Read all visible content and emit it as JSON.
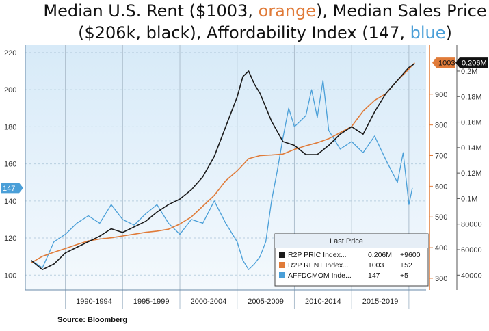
{
  "title": {
    "prefix1": "Median U.S. Rent ($1003, ",
    "orange_word": "orange",
    "suffix1": "), Median Sales Price",
    "prefix2": "($206k, black), Affordability Index (147, ",
    "blue_word": "blue",
    "suffix2": ")"
  },
  "source": "Source: Bloomberg",
  "colors": {
    "black_series": "#1a1a1a",
    "orange_series": "#e07b39",
    "blue_series": "#4a9fd8",
    "title_orange": "#e07b39",
    "title_blue": "#4a9fd8",
    "plot_bg_top": "#d7eaf8",
    "plot_bg_bottom": "#f4f9fd"
  },
  "chart_data": {
    "type": "line",
    "x_axis": {
      "range": [
        1986.5,
        2021.5
      ],
      "period_labels": [
        "1990-1994",
        "1995-1999",
        "2000-2004",
        "2005-2009",
        "2010-2014",
        "2015-2019"
      ],
      "period_bounds": [
        1990,
        1995,
        2000,
        2005,
        2010,
        2015,
        2020
      ]
    },
    "left_axis": {
      "range": [
        92,
        224
      ],
      "ticks": [
        100,
        120,
        140,
        160,
        180,
        200,
        220
      ],
      "marker": "147"
    },
    "right_rent_axis": {
      "range": [
        262,
        1060
      ],
      "ticks": [
        300,
        400,
        500,
        600,
        700,
        800,
        900
      ],
      "marker": "1003"
    },
    "right_price_axis": {
      "labels": [
        "40000",
        "60000",
        "80000",
        "0.1M",
        "0.12M",
        "0.14M",
        "0.16M",
        "0.18M",
        "0.2M"
      ],
      "values": [
        40000,
        60000,
        80000,
        100000,
        120000,
        140000,
        160000,
        180000,
        200000
      ],
      "marker": "0.206M",
      "note": "price axis is labeled in the same pixel band as the index; mapping 100 index ≈ 40000 price, 210 ≈ 200000"
    },
    "legend": {
      "title": "Last Price",
      "placement": "bottom-right",
      "entries": [
        {
          "name": "R2P PRIC Index...",
          "last": "0.206M",
          "change": "+9600",
          "color": "#1a1a1a"
        },
        {
          "name": "R2P RENT Index...",
          "last": "1003",
          "change": "+52",
          "color": "#e07b39"
        },
        {
          "name": "AFFDCMOM Inde...",
          "last": "147",
          "change": "+5",
          "color": "#4a9fd8"
        }
      ]
    },
    "series": [
      {
        "name": "R2P PRIC Index",
        "axis": "left",
        "x": [
          1987.0,
          1988.0,
          1989.0,
          1990.0,
          1991.0,
          1992.0,
          1993.0,
          1994.0,
          1995.0,
          1996.0,
          1997.0,
          1998.0,
          1999.0,
          2000.0,
          2001.0,
          2002.0,
          2003.0,
          2004.0,
          2005.0,
          2005.5,
          2006.0,
          2006.5,
          2007.0,
          2008.0,
          2009.0,
          2010.0,
          2011.0,
          2012.0,
          2013.0,
          2014.0,
          2015.0,
          2016.0,
          2017.0,
          2018.0,
          2019.0,
          2020.0,
          2020.5
        ],
        "values": [
          108,
          103,
          106,
          112,
          115,
          118,
          121,
          125,
          123,
          126,
          129,
          134,
          138,
          141,
          146,
          153,
          164,
          180,
          196,
          207,
          210,
          203,
          198,
          183,
          172,
          170,
          165,
          165,
          170,
          176,
          180,
          176,
          188,
          198,
          205,
          212,
          214
        ]
      },
      {
        "name": "R2P RENT Index",
        "axis": "right_rent",
        "x": [
          1987.0,
          1988.0,
          1989.0,
          1990.0,
          1991.0,
          1992.0,
          1993.0,
          1994.0,
          1995.0,
          1996.0,
          1997.0,
          1998.0,
          1999.0,
          2000.0,
          2001.0,
          2002.0,
          2003.0,
          2004.0,
          2005.0,
          2006.0,
          2007.0,
          2008.0,
          2009.0,
          2010.0,
          2011.0,
          2012.0,
          2013.0,
          2014.0,
          2015.0,
          2016.0,
          2017.0,
          2018.0,
          2019.0,
          2020.0,
          2020.5
        ],
        "values": [
          350,
          372,
          385,
          397,
          410,
          422,
          428,
          432,
          438,
          444,
          450,
          454,
          460,
          477,
          500,
          535,
          570,
          618,
          650,
          690,
          700,
          702,
          705,
          720,
          732,
          742,
          755,
          775,
          795,
          845,
          880,
          902,
          945,
          982,
          1003
        ]
      },
      {
        "name": "AFFDCMOM Index",
        "axis": "left",
        "x": [
          1987.0,
          1988.0,
          1989.0,
          1990.0,
          1991.0,
          1992.0,
          1993.0,
          1994.0,
          1995.0,
          1996.0,
          1997.0,
          1998.0,
          1999.0,
          2000.0,
          2001.0,
          2002.0,
          2003.0,
          2004.0,
          2005.0,
          2005.5,
          2006.0,
          2006.5,
          2007.0,
          2007.5,
          2008.0,
          2008.5,
          2009.0,
          2009.5,
          2010.0,
          2011.0,
          2011.5,
          2012.0,
          2012.5,
          2013.0,
          2014.0,
          2015.0,
          2016.0,
          2017.0,
          2018.0,
          2019.0,
          2019.5,
          2020.0,
          2020.3
        ],
        "values": [
          108,
          104,
          118,
          122,
          128,
          132,
          128,
          138,
          130,
          127,
          133,
          138,
          128,
          122,
          130,
          128,
          140,
          128,
          118,
          108,
          103,
          106,
          110,
          118,
          140,
          156,
          174,
          190,
          180,
          186,
          200,
          185,
          205,
          178,
          168,
          172,
          166,
          175,
          162,
          150,
          166,
          138,
          147
        ]
      }
    ]
  }
}
